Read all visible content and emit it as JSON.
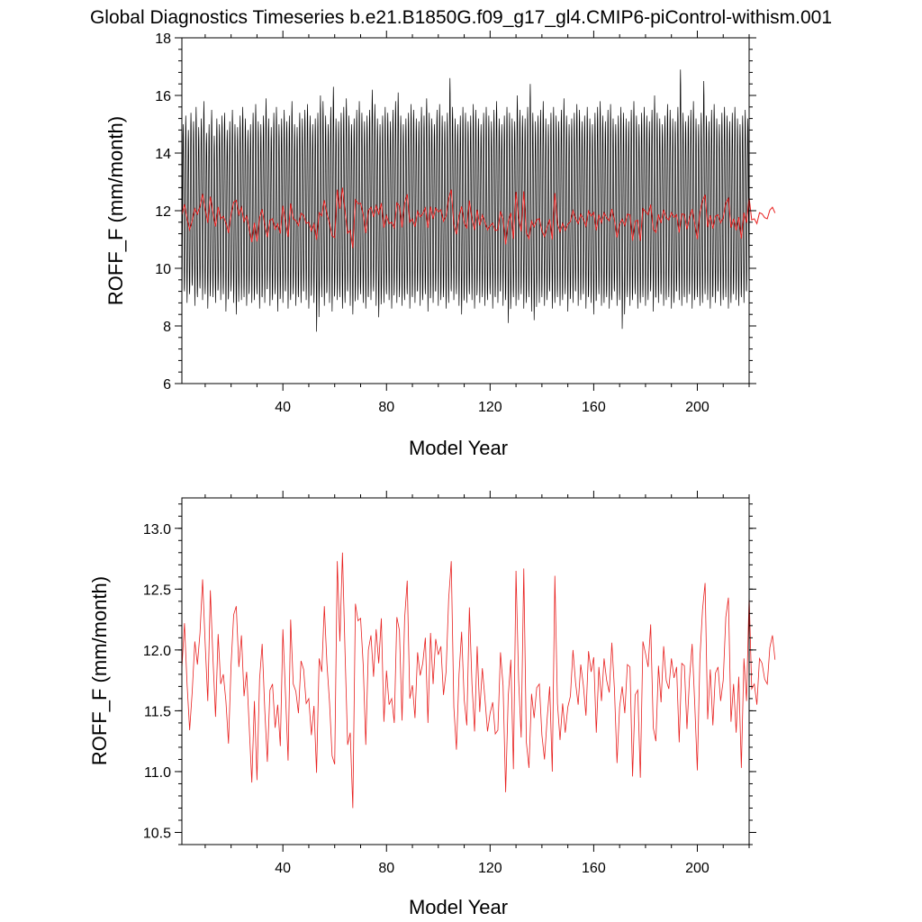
{
  "page_title": "Global Diagnostics Timeseries b.e21.B1850G.f09_g17_gl4.CMIP6-piControl-withism.001",
  "colors": {
    "monthly": "#000000",
    "annual": "#e8201f",
    "frame": "#000000"
  },
  "chart_data": [
    {
      "type": "line",
      "title": "Global Diagnostics Timeseries b.e21.B1850G.f09_g17_gl4.CMIP6-piControl-withism.001",
      "xlabel": "Model Year",
      "ylabel": "ROFF_F (mm/month)",
      "xlim": [
        1,
        220
      ],
      "ylim": [
        6,
        18
      ],
      "xticks": [
        40,
        80,
        120,
        160,
        200
      ],
      "xtick_labels": [
        "40",
        "80",
        "120",
        "160",
        "200"
      ],
      "yticks": [
        6,
        8,
        10,
        12,
        14,
        16,
        18
      ],
      "ytick_labels": [
        "6",
        "8",
        "10",
        "12",
        "14",
        "16",
        "18"
      ],
      "grid": false,
      "series": [
        {
          "style": "monthly",
          "color": "#000000",
          "description_range": [
            7.8,
            17.0
          ],
          "peaks": [
            15.0,
            15.3,
            14.8,
            15.4,
            15.1,
            15.6,
            14.9,
            15.2,
            15.8,
            14.7,
            15.0,
            15.5,
            14.6,
            15.2,
            15.0,
            15.3,
            15.4,
            14.8,
            15.1,
            15.5,
            15.0,
            14.9,
            15.3,
            15.6,
            15.2,
            14.8,
            15.0,
            15.4,
            15.7,
            15.1,
            15.0,
            15.3,
            15.9,
            15.2,
            14.9,
            15.4,
            15.6,
            15.0,
            15.2,
            15.5,
            15.1,
            15.3,
            15.8,
            15.0,
            14.9,
            15.4,
            15.2,
            15.5,
            15.7,
            15.3,
            15.0,
            15.2,
            15.4,
            16.0,
            15.8,
            15.3,
            15.0,
            15.6,
            16.3,
            15.2,
            15.1,
            15.4,
            15.6,
            15.9,
            15.3,
            15.0,
            15.2,
            15.5,
            15.8,
            15.4,
            15.1,
            15.3,
            15.5,
            16.2,
            15.7,
            15.2,
            15.0,
            15.3,
            15.6,
            15.4,
            15.1,
            15.5,
            15.8,
            16.1,
            15.3,
            15.0,
            15.2,
            15.4,
            15.7,
            15.5,
            15.2,
            15.1,
            15.6,
            15.3,
            15.9,
            15.4,
            15.2,
            15.0,
            15.5,
            15.7,
            15.3,
            15.1,
            15.4,
            16.6,
            15.6,
            15.2,
            15.0,
            15.3,
            15.6,
            15.4,
            15.1,
            15.3,
            15.7,
            15.5,
            15.2,
            15.0,
            15.4,
            15.6,
            15.3,
            15.1,
            15.5,
            15.8,
            15.2,
            15.0,
            15.3,
            15.6,
            15.4,
            15.2,
            15.1,
            16.0,
            15.5,
            15.3,
            15.2,
            15.6,
            16.4,
            15.4,
            15.1,
            15.3,
            15.5,
            15.8,
            15.2,
            15.0,
            15.4,
            15.6,
            15.3,
            15.1,
            15.5,
            15.9,
            15.3,
            15.0,
            15.2,
            15.4,
            15.7,
            15.5,
            15.1,
            15.3,
            15.6,
            15.2,
            15.0,
            15.4,
            15.6,
            15.8,
            15.3,
            15.1,
            15.5,
            15.7,
            15.2,
            15.0,
            15.3,
            15.6,
            15.4,
            15.2,
            15.1,
            15.5,
            15.8,
            15.3,
            15.0,
            15.4,
            15.6,
            15.3,
            15.1,
            15.5,
            16.0,
            15.4,
            15.2,
            15.0,
            15.3,
            15.7,
            15.5,
            15.2,
            15.1,
            15.6,
            16.9,
            15.4,
            15.1,
            15.3,
            15.5,
            15.8,
            15.2,
            15.0,
            15.4,
            16.5,
            15.3,
            15.1,
            15.5,
            15.7,
            15.2,
            15.0,
            15.4,
            15.6,
            15.3,
            15.1,
            15.4,
            15.6,
            15.2,
            15.0,
            15.3,
            15.5,
            15.2
          ],
          "troughs": [
            8.9,
            9.2,
            8.8,
            9.1,
            9.4,
            8.7,
            9.0,
            9.3,
            8.9,
            9.1,
            8.6,
            9.2,
            9.0,
            8.8,
            9.3,
            8.9,
            9.1,
            8.5,
            9.0,
            9.2,
            8.8,
            8.4,
            9.1,
            8.9,
            9.0,
            8.7,
            9.2,
            8.8,
            8.9,
            9.1,
            8.6,
            9.0,
            8.8,
            9.3,
            8.7,
            8.9,
            9.1,
            8.5,
            9.0,
            8.8,
            9.2,
            8.6,
            8.9,
            9.1,
            8.7,
            9.0,
            8.8,
            9.2,
            8.9,
            8.6,
            9.1,
            8.8,
            7.8,
            8.9,
            9.0,
            8.7,
            9.2,
            8.8,
            8.5,
            9.1,
            8.9,
            9.0,
            8.6,
            8.8,
            9.2,
            8.7,
            8.4,
            9.0,
            8.9,
            9.1,
            8.8,
            8.6,
            9.0,
            8.9,
            9.2,
            8.7,
            8.3,
            9.0,
            8.8,
            9.1,
            8.9,
            8.6,
            9.2,
            8.8,
            9.0,
            8.7,
            8.9,
            9.1,
            8.6,
            9.0,
            8.8,
            9.2,
            8.7,
            8.9,
            9.1,
            8.5,
            9.0,
            8.8,
            9.2,
            8.7,
            8.9,
            9.0,
            8.6,
            8.8,
            9.2,
            8.9,
            9.1,
            8.7,
            8.4,
            9.0,
            8.8,
            9.1,
            8.9,
            8.6,
            9.2,
            8.8,
            9.0,
            8.7,
            8.9,
            9.1,
            8.6,
            9.0,
            8.8,
            9.2,
            8.7,
            8.9,
            8.1,
            8.8,
            9.0,
            8.7,
            8.9,
            9.1,
            8.6,
            8.8,
            9.0,
            8.5,
            8.2,
            9.1,
            8.8,
            9.0,
            8.7,
            8.9,
            9.2,
            8.6,
            8.8,
            9.0,
            8.7,
            8.9,
            9.1,
            8.5,
            9.0,
            8.8,
            9.2,
            8.7,
            8.9,
            9.1,
            8.6,
            9.0,
            8.8,
            8.4,
            8.9,
            9.1,
            8.7,
            8.8,
            9.0,
            8.6,
            8.9,
            9.2,
            8.7,
            8.9,
            7.9,
            8.8,
            9.0,
            8.7,
            8.9,
            9.1,
            8.6,
            8.8,
            9.0,
            8.7,
            8.9,
            9.2,
            8.5,
            9.0,
            8.8,
            9.1,
            8.7,
            8.9,
            9.0,
            8.6,
            8.8,
            9.2,
            8.9,
            8.7,
            9.0,
            8.8,
            9.1,
            8.6,
            8.9,
            9.0,
            8.7,
            8.8,
            9.1,
            8.9,
            8.6,
            9.0,
            8.8,
            9.2,
            8.7,
            8.9,
            9.0,
            8.6,
            8.8,
            9.1,
            8.9,
            8.7,
            9.0,
            8.8,
            9.2
          ]
        },
        {
          "style": "annual",
          "color": "#e8201f",
          "ref": "annual_means"
        }
      ]
    },
    {
      "type": "line",
      "xlabel": "Model Year",
      "ylabel": "ROFF_F (mm/month)",
      "xlim": [
        1,
        220
      ],
      "ylim": [
        10.4,
        13.25
      ],
      "xticks": [
        40,
        80,
        120,
        160,
        200
      ],
      "xtick_labels": [
        "40",
        "80",
        "120",
        "160",
        "200"
      ],
      "yticks": [
        10.5,
        11.0,
        11.5,
        12.0,
        12.5,
        13.0
      ],
      "ytick_labels": [
        "10.5",
        "11.0",
        "11.5",
        "12.0",
        "12.5",
        "13.0"
      ],
      "grid": false,
      "series": [
        {
          "style": "annual",
          "color": "#e8201f",
          "ref": "annual_means"
        }
      ]
    }
  ],
  "annual_means": [
    11.85,
    12.22,
    11.72,
    11.34,
    11.66,
    12.07,
    11.88,
    12.14,
    12.58,
    12.05,
    11.58,
    12.49,
    11.93,
    11.45,
    12.13,
    11.72,
    11.8,
    11.58,
    11.23,
    11.88,
    12.29,
    12.36,
    11.86,
    12.12,
    11.62,
    11.82,
    11.37,
    10.91,
    11.58,
    10.93,
    11.76,
    12.05,
    11.51,
    11.08,
    11.67,
    11.72,
    11.36,
    11.55,
    11.21,
    12.17,
    11.64,
    11.09,
    12.25,
    11.72,
    11.66,
    11.48,
    11.91,
    11.84,
    11.56,
    11.6,
    11.3,
    11.54,
    10.99,
    11.93,
    11.82,
    12.36,
    11.89,
    11.57,
    11.13,
    11.06,
    12.73,
    12.07,
    12.8,
    11.98,
    11.22,
    11.32,
    10.7,
    12.38,
    12.24,
    12.26,
    11.88,
    11.22,
    12.0,
    12.12,
    11.78,
    12.17,
    11.89,
    12.26,
    11.41,
    11.83,
    11.55,
    11.6,
    11.4,
    12.27,
    12.16,
    11.42,
    12.26,
    12.57,
    11.6,
    11.71,
    11.44,
    11.98,
    11.79,
    11.89,
    12.1,
    11.4,
    12.14,
    11.72,
    12.09,
    11.96,
    12.03,
    11.63,
    11.82,
    12.42,
    12.73,
    11.53,
    11.18,
    11.8,
    12.15,
    11.59,
    11.38,
    12.35,
    11.72,
    11.33,
    12.03,
    11.49,
    11.85,
    11.6,
    11.33,
    11.48,
    11.57,
    11.31,
    11.34,
    11.98,
    11.71,
    10.83,
    11.62,
    11.92,
    11.02,
    12.65,
    11.76,
    11.28,
    12.67,
    11.24,
    11.03,
    11.64,
    11.44,
    11.69,
    11.72,
    11.3,
    11.1,
    11.43,
    11.7,
    11.0,
    12.61,
    11.56,
    11.26,
    11.56,
    11.32,
    11.53,
    11.62,
    12.0,
    11.73,
    11.55,
    11.88,
    11.71,
    11.46,
    11.99,
    11.82,
    11.94,
    11.32,
    11.86,
    11.58,
    11.93,
    11.75,
    11.65,
    12.06,
    11.68,
    11.07,
    11.53,
    11.7,
    11.48,
    11.88,
    11.86,
    10.96,
    11.63,
    11.67,
    10.95,
    12.07,
    11.97,
    11.86,
    12.21,
    11.36,
    11.25,
    11.87,
    11.57,
    12.03,
    11.75,
    11.68,
    11.93,
    11.77,
    11.86,
    11.24,
    11.89,
    11.87,
    11.35,
    11.77,
    12.05,
    11.56,
    11.01,
    11.93,
    12.33,
    12.55,
    11.43,
    11.84,
    11.38,
    11.81,
    11.86,
    11.58,
    11.75,
    12.27,
    12.43,
    11.41,
    11.72,
    11.32,
    11.78,
    11.03,
    11.93,
    11.58,
    12.45,
    11.68,
    11.72,
    11.55,
    11.93,
    11.89,
    11.76,
    11.72,
    12.02,
    12.12,
    11.92
  ]
}
